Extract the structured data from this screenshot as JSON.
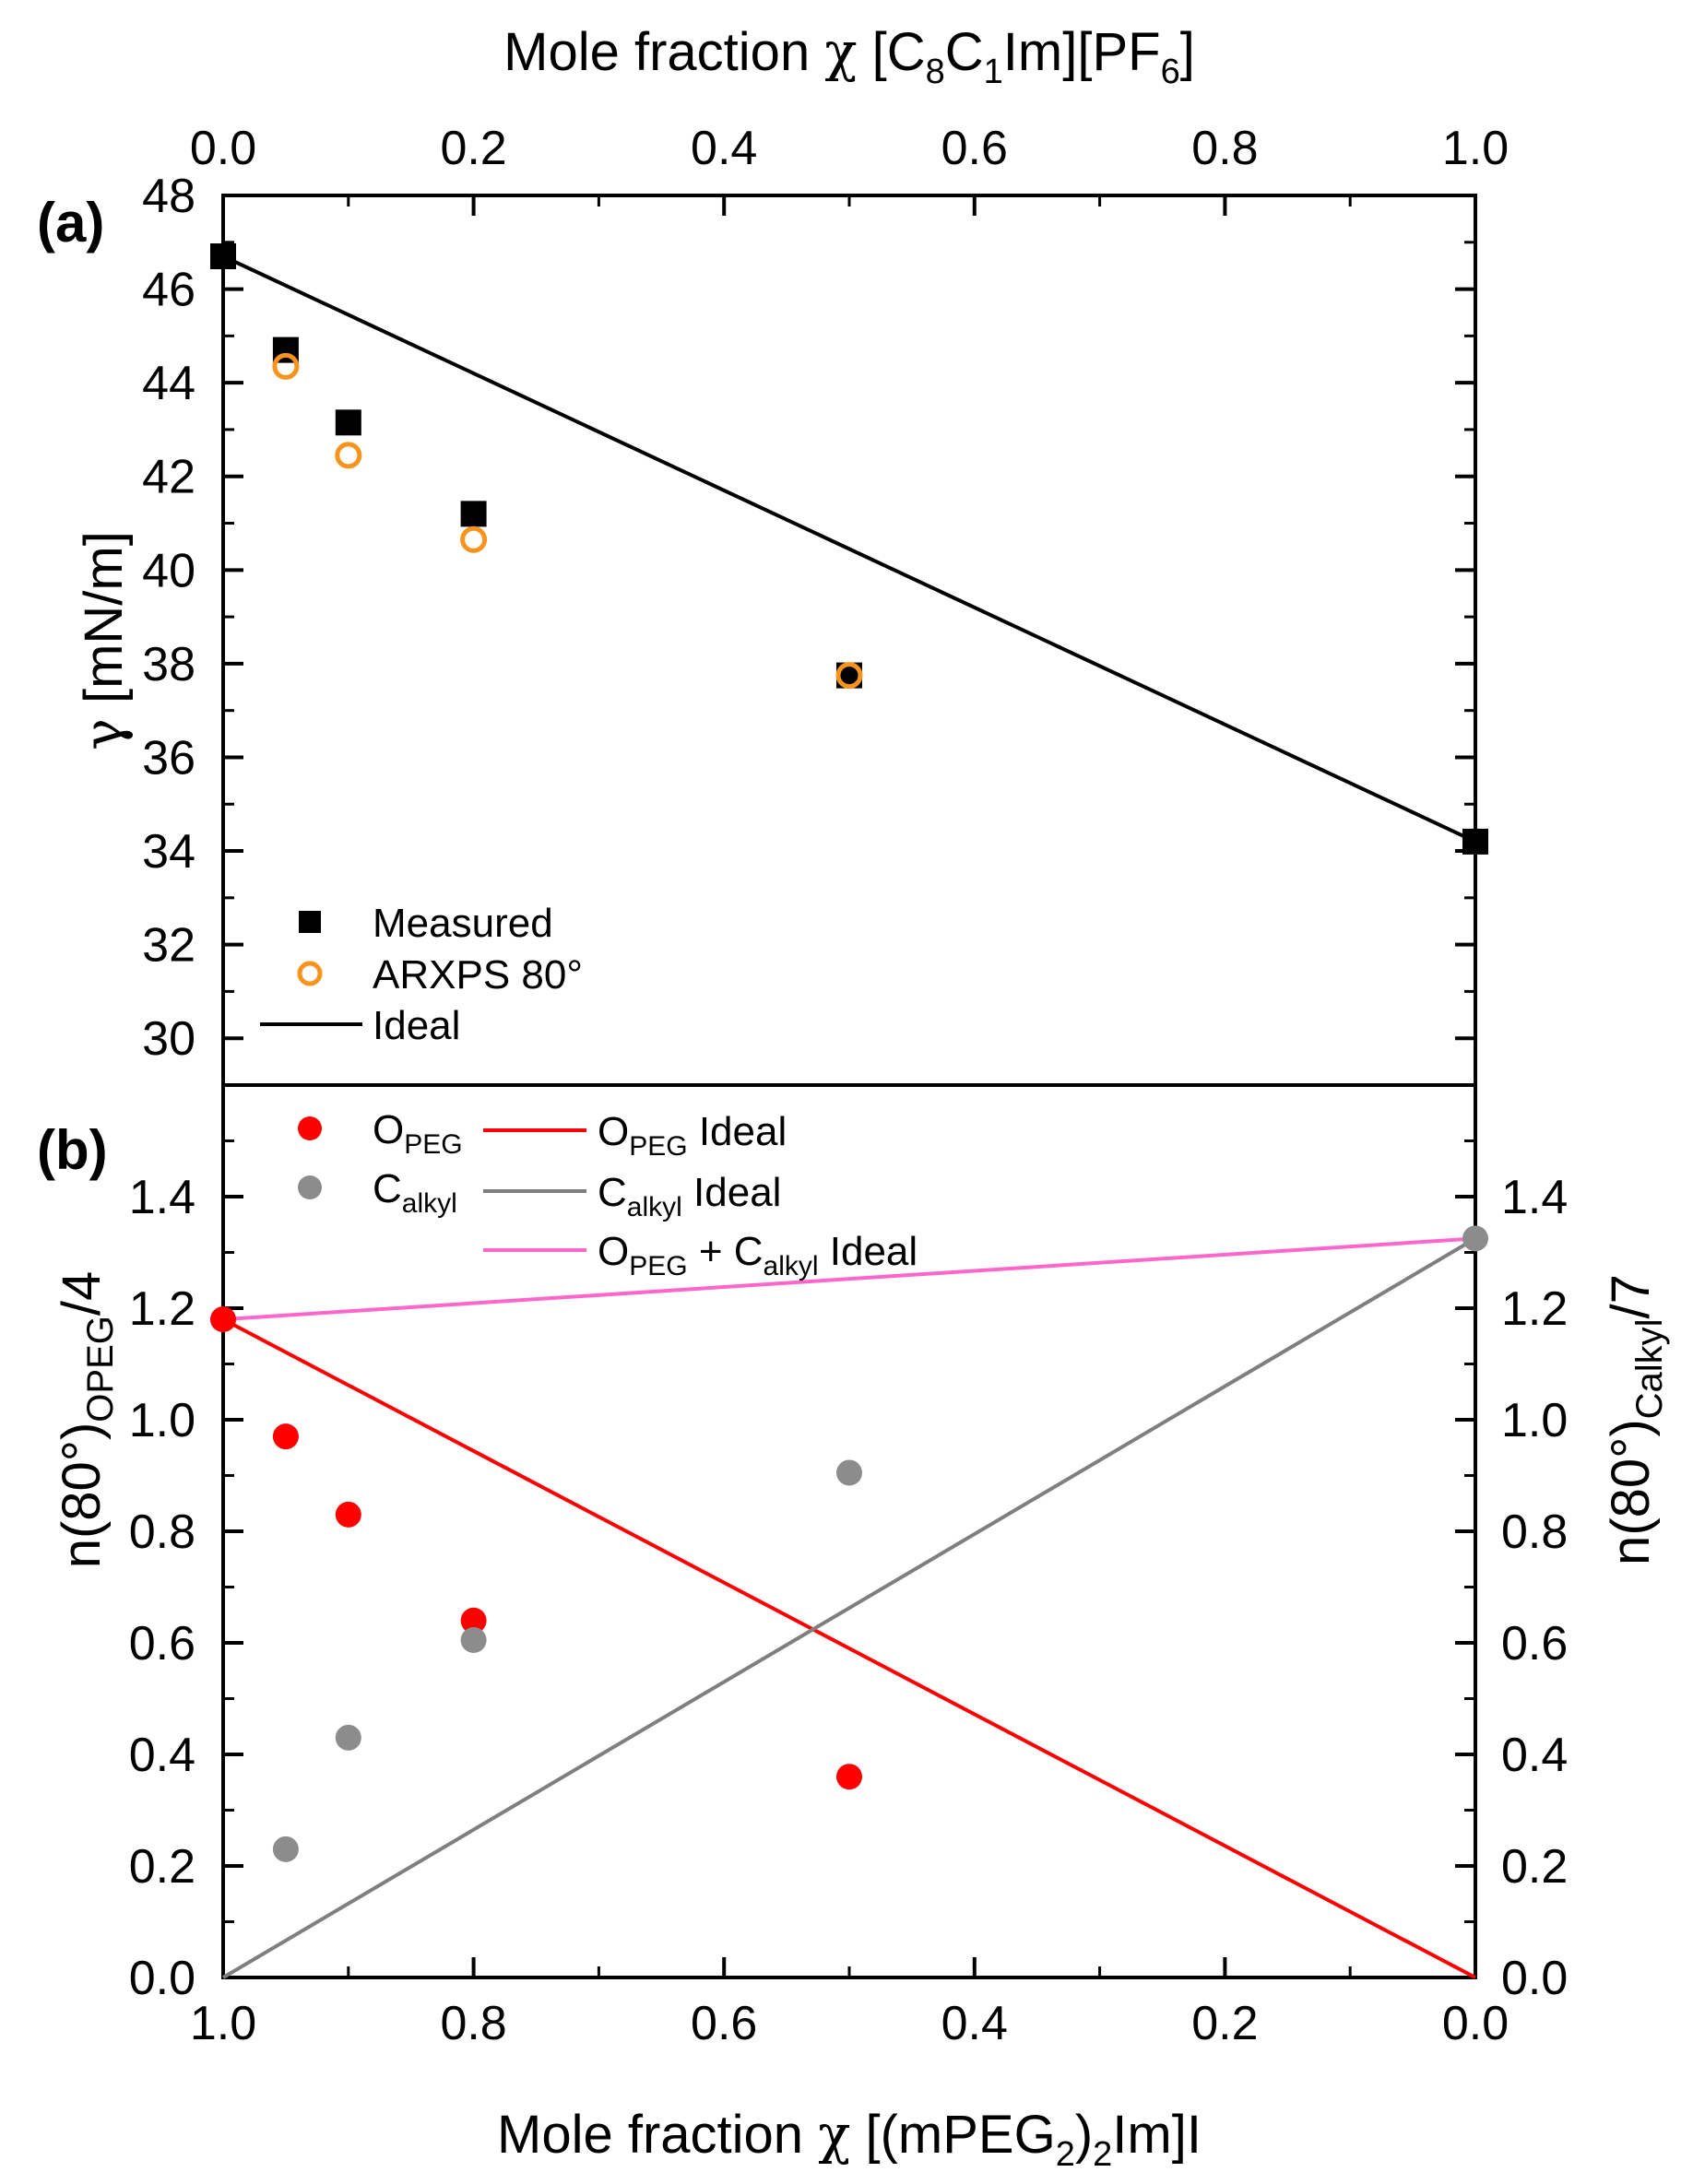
{
  "chart_data": [
    {
      "panel": "a",
      "type": "scatter",
      "panel_label": "(a)",
      "xlabel_top_parts": [
        "Mole fraction ",
        "χ",
        " [C",
        "8",
        "C",
        "1",
        "Im][PF",
        "6",
        "]"
      ],
      "ylabel_parts": [
        "γ",
        " [mN/m]"
      ],
      "x_top_range": [
        0.0,
        1.0
      ],
      "ylim": [
        29,
        48
      ],
      "x_top_ticks": [
        "0.0",
        "0.2",
        "0.4",
        "0.6",
        "0.8",
        "1.0"
      ],
      "y_ticks": [
        "30",
        "32",
        "34",
        "36",
        "38",
        "40",
        "42",
        "44",
        "46",
        "48"
      ],
      "series": [
        {
          "name": "Measured",
          "marker": "square",
          "color": "#000000",
          "x": [
            0.0,
            0.05,
            0.1,
            0.2,
            0.5,
            1.0
          ],
          "y": [
            46.7,
            44.7,
            43.15,
            41.2,
            37.75,
            34.2
          ]
        },
        {
          "name": "ARXPS 80°",
          "marker": "circle-open",
          "color": "#F7941D",
          "x": [
            0.05,
            0.1,
            0.2,
            0.5
          ],
          "y": [
            44.35,
            42.45,
            40.65,
            37.75
          ]
        },
        {
          "name": "Ideal",
          "marker": "line",
          "color": "#000000",
          "x": [
            0.0,
            1.0
          ],
          "y": [
            46.7,
            34.2
          ]
        }
      ],
      "legend": {
        "position": "bottom-left",
        "entries": [
          {
            "label": "Measured"
          },
          {
            "label": "ARXPS 80°"
          },
          {
            "label": "Ideal"
          }
        ]
      }
    },
    {
      "panel": "b",
      "type": "scatter",
      "panel_label": "(b)",
      "xlabel_bottom_parts": [
        "Mole fraction ",
        "χ",
        " [(mPEG",
        "2",
        ")",
        "2",
        "Im]I"
      ],
      "ylabel_left_parts": [
        "n(80°)",
        "OPEG",
        "/4"
      ],
      "ylabel_right_parts": [
        "n(80°)",
        "Calkyl",
        "/7"
      ],
      "x_bottom_range": [
        1.0,
        0.0
      ],
      "ylim": [
        0.0,
        1.6
      ],
      "x_bottom_ticks": [
        "1.0",
        "0.8",
        "0.6",
        "0.4",
        "0.2",
        "0.0"
      ],
      "y_ticks": [
        "0.0",
        "0.2",
        "0.4",
        "0.6",
        "0.8",
        "1.0",
        "1.2",
        "1.4"
      ],
      "series": [
        {
          "name": "OPEG",
          "marker": "circle",
          "color": "#FF0000",
          "x": [
            1.0,
            0.95,
            0.9,
            0.8,
            0.5
          ],
          "y": [
            1.18,
            0.97,
            0.83,
            0.64,
            0.36
          ]
        },
        {
          "name": "Calkyl",
          "marker": "circle",
          "color": "#8C8C8C",
          "x": [
            0.95,
            0.9,
            0.8,
            0.5,
            0.0
          ],
          "y": [
            0.23,
            0.43,
            0.605,
            0.905,
            1.325
          ]
        },
        {
          "name": "OPEG Ideal",
          "marker": "line",
          "color": "#FF0000",
          "x": [
            1.0,
            0.0
          ],
          "y": [
            1.18,
            0.0
          ]
        },
        {
          "name": "Calkyl Ideal",
          "marker": "line",
          "color": "#7F7F7F",
          "x": [
            1.0,
            0.0
          ],
          "y": [
            0.0,
            1.325
          ]
        },
        {
          "name": "OPEG + Calkyl Ideal",
          "marker": "line",
          "color": "#FF66CC",
          "x": [
            1.0,
            0.0
          ],
          "y": [
            1.18,
            1.325
          ]
        }
      ],
      "legend": {
        "position": "top-left",
        "entries": [
          {
            "label_parts": [
              "O",
              "PEG"
            ]
          },
          {
            "label_parts": [
              "C",
              "alkyl"
            ]
          },
          {
            "label_parts": [
              "O",
              "PEG",
              " Ideal"
            ]
          },
          {
            "label_parts": [
              "C",
              "alkyl",
              " Ideal"
            ]
          },
          {
            "label_parts": [
              "O",
              "PEG",
              " + C",
              "alkyl",
              " Ideal"
            ]
          }
        ]
      }
    }
  ]
}
